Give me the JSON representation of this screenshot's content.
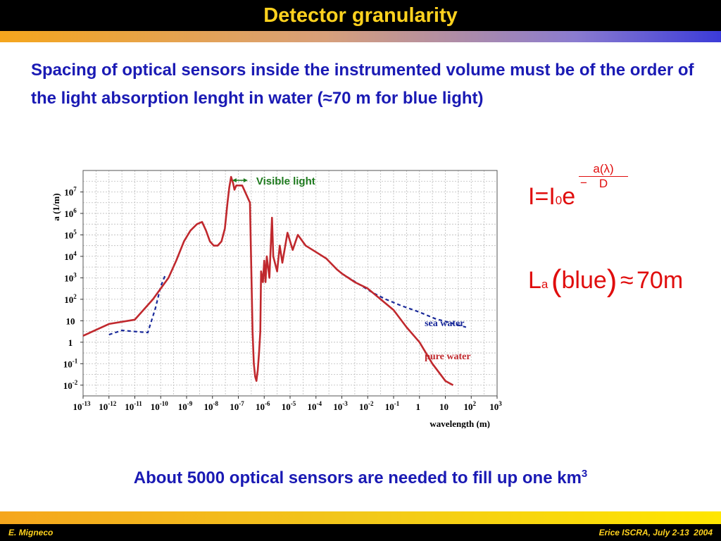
{
  "slide": {
    "title": "Detector granularity",
    "intro": "Spacing of optical sensors inside the instrumented volume must be of the order of the light absorption lenght in water (≈70 m for blue light)",
    "conclusion_text": "About 5000 optical sensors are needed to fill up one km",
    "conclusion_sup": "3",
    "footer_left": "E. Migneco",
    "footer_right": "Erice ISCRA, July 2-13  2004"
  },
  "formulas": {
    "eq1_lhs": "I",
    "eq1_eq": "=",
    "eq1_i": "I",
    "eq1_sub": "0",
    "eq1_e": "e",
    "eq1_minus": "−",
    "eq1_num": "a(λ)",
    "eq1_den": "D",
    "eq2_L": "L",
    "eq2_sub": "a",
    "eq2_open": "(",
    "eq2_word": "blue",
    "eq2_close": ")",
    "eq2_approx": "≈",
    "eq2_val": "70m"
  },
  "colors": {
    "title_text": "#ffd21e",
    "body_text": "#1a1ab4",
    "formula": "#e00d0d",
    "pure_water": "#c0282d",
    "sea_water": "#1a2a9a",
    "visible_light": "#1e7a1e"
  },
  "chart_data": {
    "type": "line",
    "xlabel": "wavelength (m)",
    "ylabel": "a (1/m)",
    "xscale": "log",
    "yscale": "log",
    "xlim_exp": [
      -13,
      3
    ],
    "ylim_exp": [
      -2.5,
      8
    ],
    "x_ticks": [
      {
        "base": "10",
        "exp": "-13",
        "e": -13
      },
      {
        "base": "10",
        "exp": "-12",
        "e": -12
      },
      {
        "base": "10",
        "exp": "-11",
        "e": -11
      },
      {
        "base": "10",
        "exp": "-10",
        "e": -10
      },
      {
        "base": "10",
        "exp": "-9",
        "e": -9
      },
      {
        "base": "10",
        "exp": "-8",
        "e": -8
      },
      {
        "base": "10",
        "exp": "-7",
        "e": -7
      },
      {
        "base": "10",
        "exp": "-6",
        "e": -6
      },
      {
        "base": "10",
        "exp": "-5",
        "e": -5
      },
      {
        "base": "10",
        "exp": "-4",
        "e": -4
      },
      {
        "base": "10",
        "exp": "-3",
        "e": -3
      },
      {
        "base": "10",
        "exp": "-2",
        "e": -2
      },
      {
        "base": "10",
        "exp": "-1",
        "e": -1
      },
      {
        "base": "1",
        "exp": "",
        "e": 0
      },
      {
        "base": "10",
        "exp": "",
        "e": 1
      },
      {
        "base": "10",
        "exp": "2",
        "e": 2
      },
      {
        "base": "10",
        "exp": "3",
        "e": 3
      }
    ],
    "y_ticks": [
      {
        "base": "10",
        "exp": "-2",
        "e": -2
      },
      {
        "base": "10",
        "exp": "-1",
        "e": -1
      },
      {
        "base": "1",
        "exp": "",
        "e": 0
      },
      {
        "base": "10",
        "exp": "",
        "e": 1
      },
      {
        "base": "10",
        "exp": "2",
        "e": 2
      },
      {
        "base": "10",
        "exp": "3",
        "e": 3
      },
      {
        "base": "10",
        "exp": "4",
        "e": 4
      },
      {
        "base": "10",
        "exp": "5",
        "e": 5
      },
      {
        "base": "10",
        "exp": "6",
        "e": 6
      },
      {
        "base": "10",
        "exp": "7",
        "e": 7
      }
    ],
    "grid": true,
    "annotation": "Visible light",
    "visible_band_exp": [
      -7.4,
      -6.8
    ],
    "series": [
      {
        "name": "pure water",
        "style": "solid",
        "x_exp": [
          -13,
          -12,
          -11,
          -10.3,
          -9.7,
          -9.4,
          -9.1,
          -8.85,
          -8.6,
          -8.4,
          -8.25,
          -8.1,
          -7.95,
          -7.8,
          -7.65,
          -7.52,
          -7.42,
          -7.35,
          -7.28,
          -7.2,
          -7.15,
          -7.08,
          -6.85,
          -6.55,
          -6.45,
          -6.4,
          -6.35,
          -6.3,
          -6.25,
          -6.2,
          -6.15,
          -6.12,
          -6.05,
          -6.0,
          -5.95,
          -5.9,
          -5.8,
          -5.7,
          -5.65,
          -5.5,
          -5.4,
          -5.3,
          -5.1,
          -4.9,
          -4.7,
          -4.4,
          -4.0,
          -3.6,
          -3.2,
          -3.0,
          -2.5,
          -2.0,
          -1.0,
          -0.5,
          0.0,
          0.5,
          1.0,
          1.3
        ],
        "y_exp": [
          0.3,
          0.85,
          1.05,
          2.0,
          3.0,
          3.8,
          4.7,
          5.2,
          5.5,
          5.6,
          5.2,
          4.7,
          4.5,
          4.5,
          4.7,
          5.3,
          6.5,
          7.2,
          7.7,
          7.4,
          7.1,
          7.3,
          7.3,
          6.5,
          0.5,
          -1.0,
          -1.6,
          -1.8,
          -1.3,
          -0.5,
          0.5,
          3.3,
          2.8,
          3.8,
          2.8,
          4.0,
          3.0,
          5.8,
          4.0,
          3.3,
          4.5,
          3.7,
          5.1,
          4.3,
          5.0,
          4.5,
          4.2,
          3.9,
          3.4,
          3.2,
          2.8,
          2.5,
          1.5,
          0.7,
          0.0,
          -1.0,
          -1.8,
          -2.0
        ]
      },
      {
        "name": "sea water",
        "style": "dashed",
        "x_exp": [
          -12,
          -11.5,
          -11,
          -10.5,
          -10.2,
          -10.0,
          -9.8
        ],
        "y_exp": [
          0.35,
          0.55,
          0.5,
          0.45,
          1.6,
          2.6,
          3.2
        ],
        "x2_exp": [
          -3.0,
          -2.6,
          -2.2,
          -1.8,
          -1.3,
          -0.7,
          0.0,
          0.6,
          1.2,
          1.8
        ],
        "y2_exp": [
          3.2,
          2.9,
          2.6,
          2.3,
          2.0,
          1.7,
          1.4,
          1.1,
          0.9,
          0.7
        ]
      }
    ]
  }
}
